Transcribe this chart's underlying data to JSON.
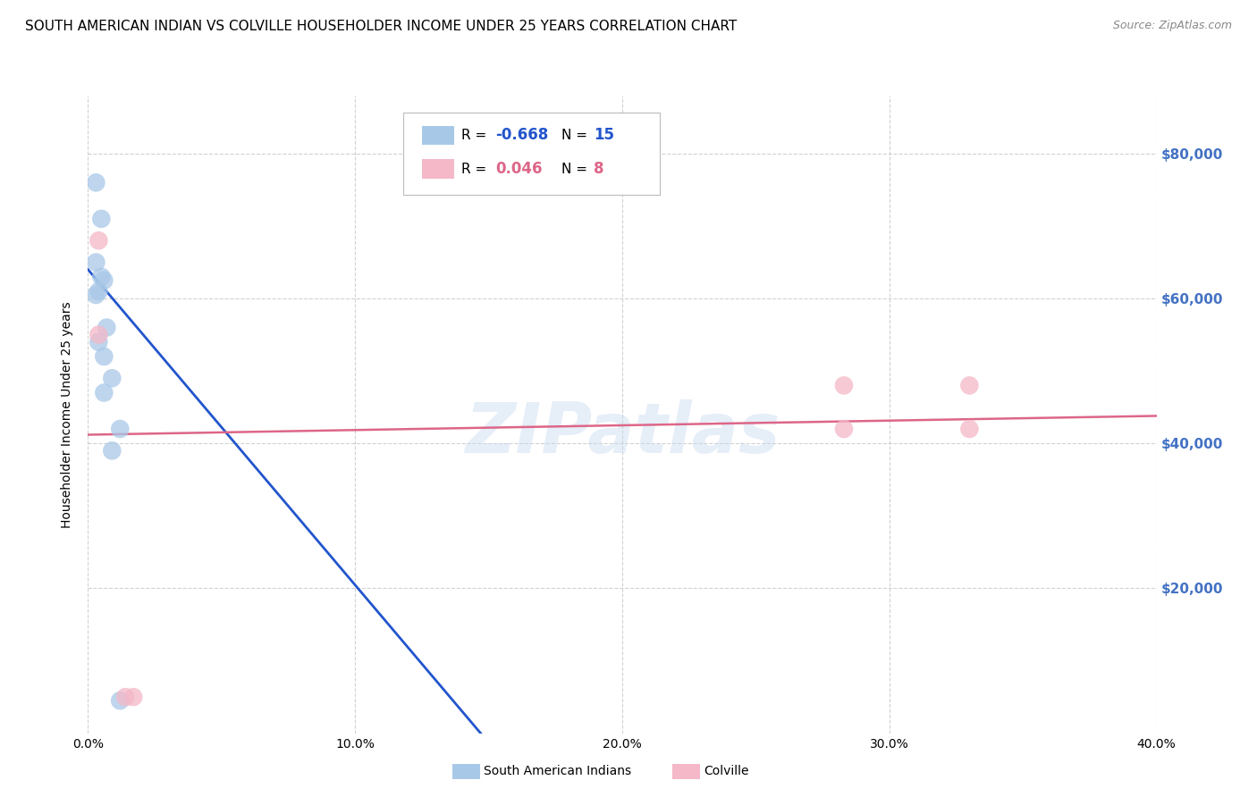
{
  "title": "SOUTH AMERICAN INDIAN VS COLVILLE HOUSEHOLDER INCOME UNDER 25 YEARS CORRELATION CHART",
  "source": "Source: ZipAtlas.com",
  "ylabel": "Householder Income Under 25 years",
  "xlabel_ticks": [
    "0.0%",
    "10.0%",
    "20.0%",
    "30.0%",
    "40.0%"
  ],
  "xlabel_vals": [
    0.0,
    0.1,
    0.2,
    0.3,
    0.4
  ],
  "ylabel_ticks": [
    "$20,000",
    "$40,000",
    "$60,000",
    "$80,000"
  ],
  "ylabel_vals": [
    20000,
    40000,
    60000,
    80000
  ],
  "xlim": [
    0.0,
    0.4
  ],
  "ylim": [
    0,
    88000
  ],
  "blue_r": -0.668,
  "blue_n": 15,
  "pink_r": 0.046,
  "pink_n": 8,
  "blue_points_x": [
    0.003,
    0.005,
    0.003,
    0.005,
    0.006,
    0.004,
    0.003,
    0.007,
    0.004,
    0.006,
    0.009,
    0.006,
    0.012,
    0.009,
    0.012
  ],
  "blue_points_y": [
    76000,
    71000,
    65000,
    63000,
    62500,
    61000,
    60500,
    56000,
    54000,
    52000,
    49000,
    47000,
    42000,
    39000,
    4500
  ],
  "pink_points_x": [
    0.004,
    0.004,
    0.014,
    0.017,
    0.283,
    0.33,
    0.283,
    0.33
  ],
  "pink_points_y": [
    68000,
    55000,
    5000,
    5000,
    48000,
    48000,
    42000,
    42000
  ],
  "blue_line_x": [
    0.0,
    0.147
  ],
  "blue_line_y": [
    64000,
    0
  ],
  "pink_line_x": [
    0.0,
    0.4
  ],
  "pink_line_y": [
    41200,
    43800
  ],
  "blue_color": "#a8c8e8",
  "pink_color": "#f4b8c8",
  "blue_line_color": "#2255cc",
  "pink_line_color": "#dd6688",
  "background_color": "#ffffff",
  "watermark": "ZIPatlas",
  "title_fontsize": 11,
  "axis_label_fontsize": 10,
  "tick_fontsize": 10,
  "right_tick_color": "#4472c4"
}
